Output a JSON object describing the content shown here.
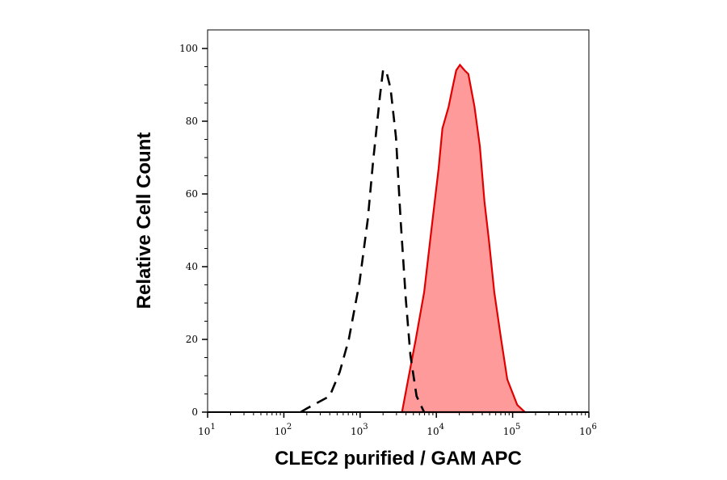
{
  "chart_data": {
    "type": "area",
    "title": "",
    "xlabel": "CLEC2 purified / GAM APC",
    "ylabel": "Relative Cell Count",
    "x_scale": "log",
    "xlim": [
      10,
      1000000
    ],
    "ylim": [
      0,
      100
    ],
    "x_ticks": [
      {
        "base": "10",
        "exp": "1"
      },
      {
        "base": "10",
        "exp": "2"
      },
      {
        "base": "10",
        "exp": "3"
      },
      {
        "base": "10",
        "exp": "4"
      },
      {
        "base": "10",
        "exp": "5"
      },
      {
        "base": "10",
        "exp": "6"
      }
    ],
    "y_ticks": [
      "0",
      "20",
      "40",
      "60",
      "80",
      "100"
    ],
    "grid": false,
    "series": [
      {
        "style": "dashed-outline",
        "color": "#000000",
        "points": [
          [
            166,
            0
          ],
          [
            200,
            1
          ],
          [
            400,
            4.4
          ],
          [
            540,
            11
          ],
          [
            710,
            20
          ],
          [
            980,
            35.6
          ],
          [
            1260,
            53
          ],
          [
            1480,
            69
          ],
          [
            1820,
            87
          ],
          [
            2000,
            94
          ],
          [
            2190,
            94
          ],
          [
            2510,
            89
          ],
          [
            2950,
            75.6
          ],
          [
            3390,
            53
          ],
          [
            3980,
            31
          ],
          [
            4570,
            15.6
          ],
          [
            5500,
            4.4
          ],
          [
            6900,
            0
          ]
        ]
      },
      {
        "style": "filled",
        "color": "#e00000",
        "fill": "#ff9a9a",
        "points": [
          [
            3550,
            0
          ],
          [
            4270,
            9
          ],
          [
            5370,
            20
          ],
          [
            6920,
            33
          ],
          [
            8710,
            51
          ],
          [
            10700,
            67
          ],
          [
            12000,
            78
          ],
          [
            14500,
            84
          ],
          [
            16200,
            89
          ],
          [
            18200,
            94
          ],
          [
            20400,
            95.5
          ],
          [
            23400,
            94
          ],
          [
            26300,
            93
          ],
          [
            31600,
            84
          ],
          [
            37200,
            73
          ],
          [
            42700,
            58
          ],
          [
            49000,
            47
          ],
          [
            57500,
            33
          ],
          [
            70800,
            20
          ],
          [
            85100,
            9
          ],
          [
            115000,
            2
          ],
          [
            145000,
            0
          ]
        ]
      }
    ]
  }
}
